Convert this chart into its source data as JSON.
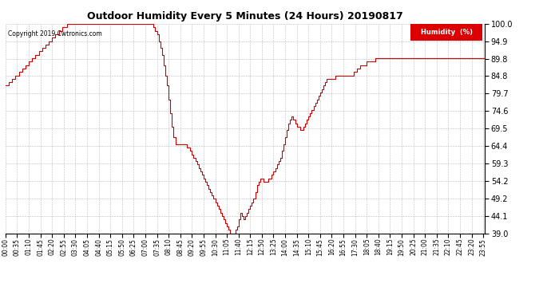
{
  "title": "Outdoor Humidity Every 5 Minutes (24 Hours) 20190817",
  "copyright_text": "Copyright 2019 Cwtronics.com",
  "legend_label": "Humidity  (%)",
  "legend_bg": "#dd0000",
  "legend_text_color": "#ffffff",
  "line_color": "#cc0000",
  "bg_color": "#ffffff",
  "grid_color": "#bbbbbb",
  "title_color": "#000000",
  "copyright_color": "#000000",
  "ylim": [
    39.0,
    100.0
  ],
  "yticks": [
    39.0,
    44.1,
    49.2,
    54.2,
    59.3,
    64.4,
    69.5,
    74.6,
    79.7,
    84.8,
    89.8,
    94.9,
    100.0
  ],
  "humidity": [
    82,
    82,
    83,
    83,
    84,
    84,
    85,
    85,
    86,
    86,
    87,
    87,
    88,
    88,
    89,
    89,
    90,
    90,
    91,
    91,
    92,
    92,
    93,
    93,
    94,
    94,
    95,
    95,
    96,
    96,
    97,
    97,
    98,
    98,
    99,
    99,
    99,
    100,
    100,
    100,
    100,
    100,
    100,
    100,
    100,
    100,
    100,
    100,
    100,
    100,
    100,
    100,
    100,
    100,
    100,
    100,
    100,
    100,
    100,
    100,
    100,
    100,
    100,
    100,
    100,
    100,
    100,
    100,
    100,
    100,
    100,
    100,
    100,
    100,
    100,
    100,
    100,
    100,
    100,
    100,
    100,
    100,
    100,
    100,
    100,
    100,
    100,
    100,
    100,
    99,
    98,
    97,
    95,
    93,
    91,
    88,
    85,
    82,
    78,
    74,
    70,
    67,
    65,
    65,
    65,
    65,
    65,
    65,
    65,
    64,
    64,
    63,
    62,
    61,
    60,
    59,
    58,
    57,
    56,
    55,
    54,
    53,
    52,
    51,
    50,
    49,
    48,
    47,
    46,
    45,
    44,
    43,
    42,
    41,
    40,
    39,
    39,
    39,
    40,
    41,
    43,
    45,
    44,
    43,
    44,
    45,
    46,
    47,
    48,
    49,
    51,
    53,
    54,
    55,
    55,
    54,
    54,
    54,
    55,
    55,
    56,
    57,
    58,
    59,
    60,
    61,
    63,
    65,
    67,
    69,
    71,
    72,
    73,
    72,
    71,
    70,
    70,
    69,
    69,
    70,
    71,
    72,
    73,
    74,
    75,
    76,
    77,
    78,
    79,
    80,
    81,
    82,
    83,
    84,
    84,
    84,
    84,
    84,
    85,
    85,
    85,
    85,
    85,
    85,
    85,
    85,
    85,
    85,
    85,
    86,
    86,
    87,
    87,
    88,
    88,
    88,
    88,
    89,
    89,
    89,
    89,
    89,
    90,
    90,
    90,
    90,
    90,
    90,
    90,
    90,
    90,
    90,
    90,
    90,
    90,
    90,
    90,
    90,
    90,
    90,
    90,
    90,
    90,
    90,
    90,
    90,
    90,
    90,
    90,
    90,
    90,
    90,
    90,
    90,
    90,
    90,
    90,
    90,
    90,
    90,
    90,
    90,
    90,
    90,
    90,
    90,
    90,
    90,
    90,
    90,
    90,
    90,
    90,
    90,
    90,
    90,
    90,
    90,
    90,
    90,
    90,
    90,
    90,
    90,
    90,
    90,
    90,
    90,
    90
  ]
}
